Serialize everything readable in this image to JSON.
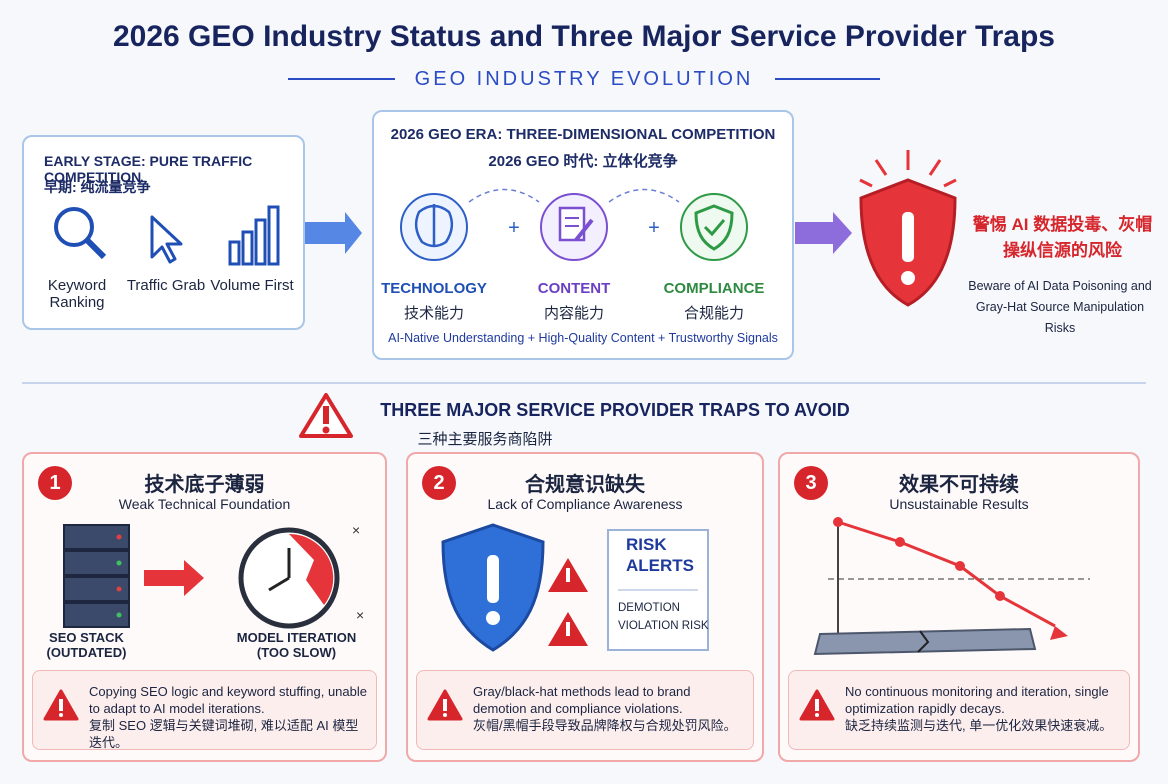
{
  "header": {
    "title": "2026 GEO Industry Status and Three Major Service Provider Traps",
    "subtitle": "GEO INDUSTRY EVOLUTION"
  },
  "early": {
    "title": "EARLY STAGE: PURE TRAFFIC COMPETITION",
    "title_zh": "早期: 纯流量竞争",
    "items": [
      "Keyword Ranking",
      "Traffic Grab",
      "Volume First"
    ]
  },
  "era": {
    "title": "2026 GEO ERA: THREE-DIMENSIONAL COMPETITION",
    "title_zh": "2026 GEO 时代: 立体化竞争",
    "pillars": [
      {
        "label": "TECHNOLOGY",
        "label_zh": "技术能力"
      },
      {
        "label": "CONTENT",
        "label_zh": "内容能力"
      },
      {
        "label": "COMPLIANCE",
        "label_zh": "合规能力"
      }
    ],
    "footer": "AI-Native Understanding + High-Quality Content + Trustworthy Signals"
  },
  "warning": {
    "text_zh": "警惕 AI 数据投毒、灰帽操纵信源的风险",
    "text_en": "Beware of AI Data Poisoning and Gray-Hat Source Manipulation Risks"
  },
  "traps": {
    "title": "THREE MAJOR SERVICE PROVIDER TRAPS TO AVOID",
    "title_zh": "三种主要服务商陷阱",
    "items": [
      {
        "number": "1",
        "title_zh": "技术底子薄弱",
        "title_en": "Weak Technical Foundation",
        "labels": [
          "SEO STACK (OUTDATED)",
          "MODEL ITERATION (TOO SLOW)"
        ],
        "note_en": "Copying SEO logic and keyword stuffing, unable to adapt to AI model iterations.",
        "note_zh": "复制 SEO 逻辑与关键词堆砌, 难以适配 AI 模型迭代。"
      },
      {
        "number": "2",
        "title_zh": "合规意识缺失",
        "title_en": "Lack of Compliance Awareness",
        "labels": [
          "RISK ALERTS",
          "DEMOTION",
          "VIOLATION RISK"
        ],
        "note_en": "Gray/black-hat methods lead to brand demotion and compliance violations.",
        "note_zh": "灰帽/黑帽手段导致品牌降权与合规处罚风险。"
      },
      {
        "number": "3",
        "title_zh": "效果不可持续",
        "title_en": "Unsustainable Results",
        "labels": [],
        "note_en": "No continuous monitoring and iteration, single optimization rapidly decays.",
        "note_zh": "缺乏持续监测与迭代, 单一优化效果快速衰减。"
      }
    ]
  }
}
